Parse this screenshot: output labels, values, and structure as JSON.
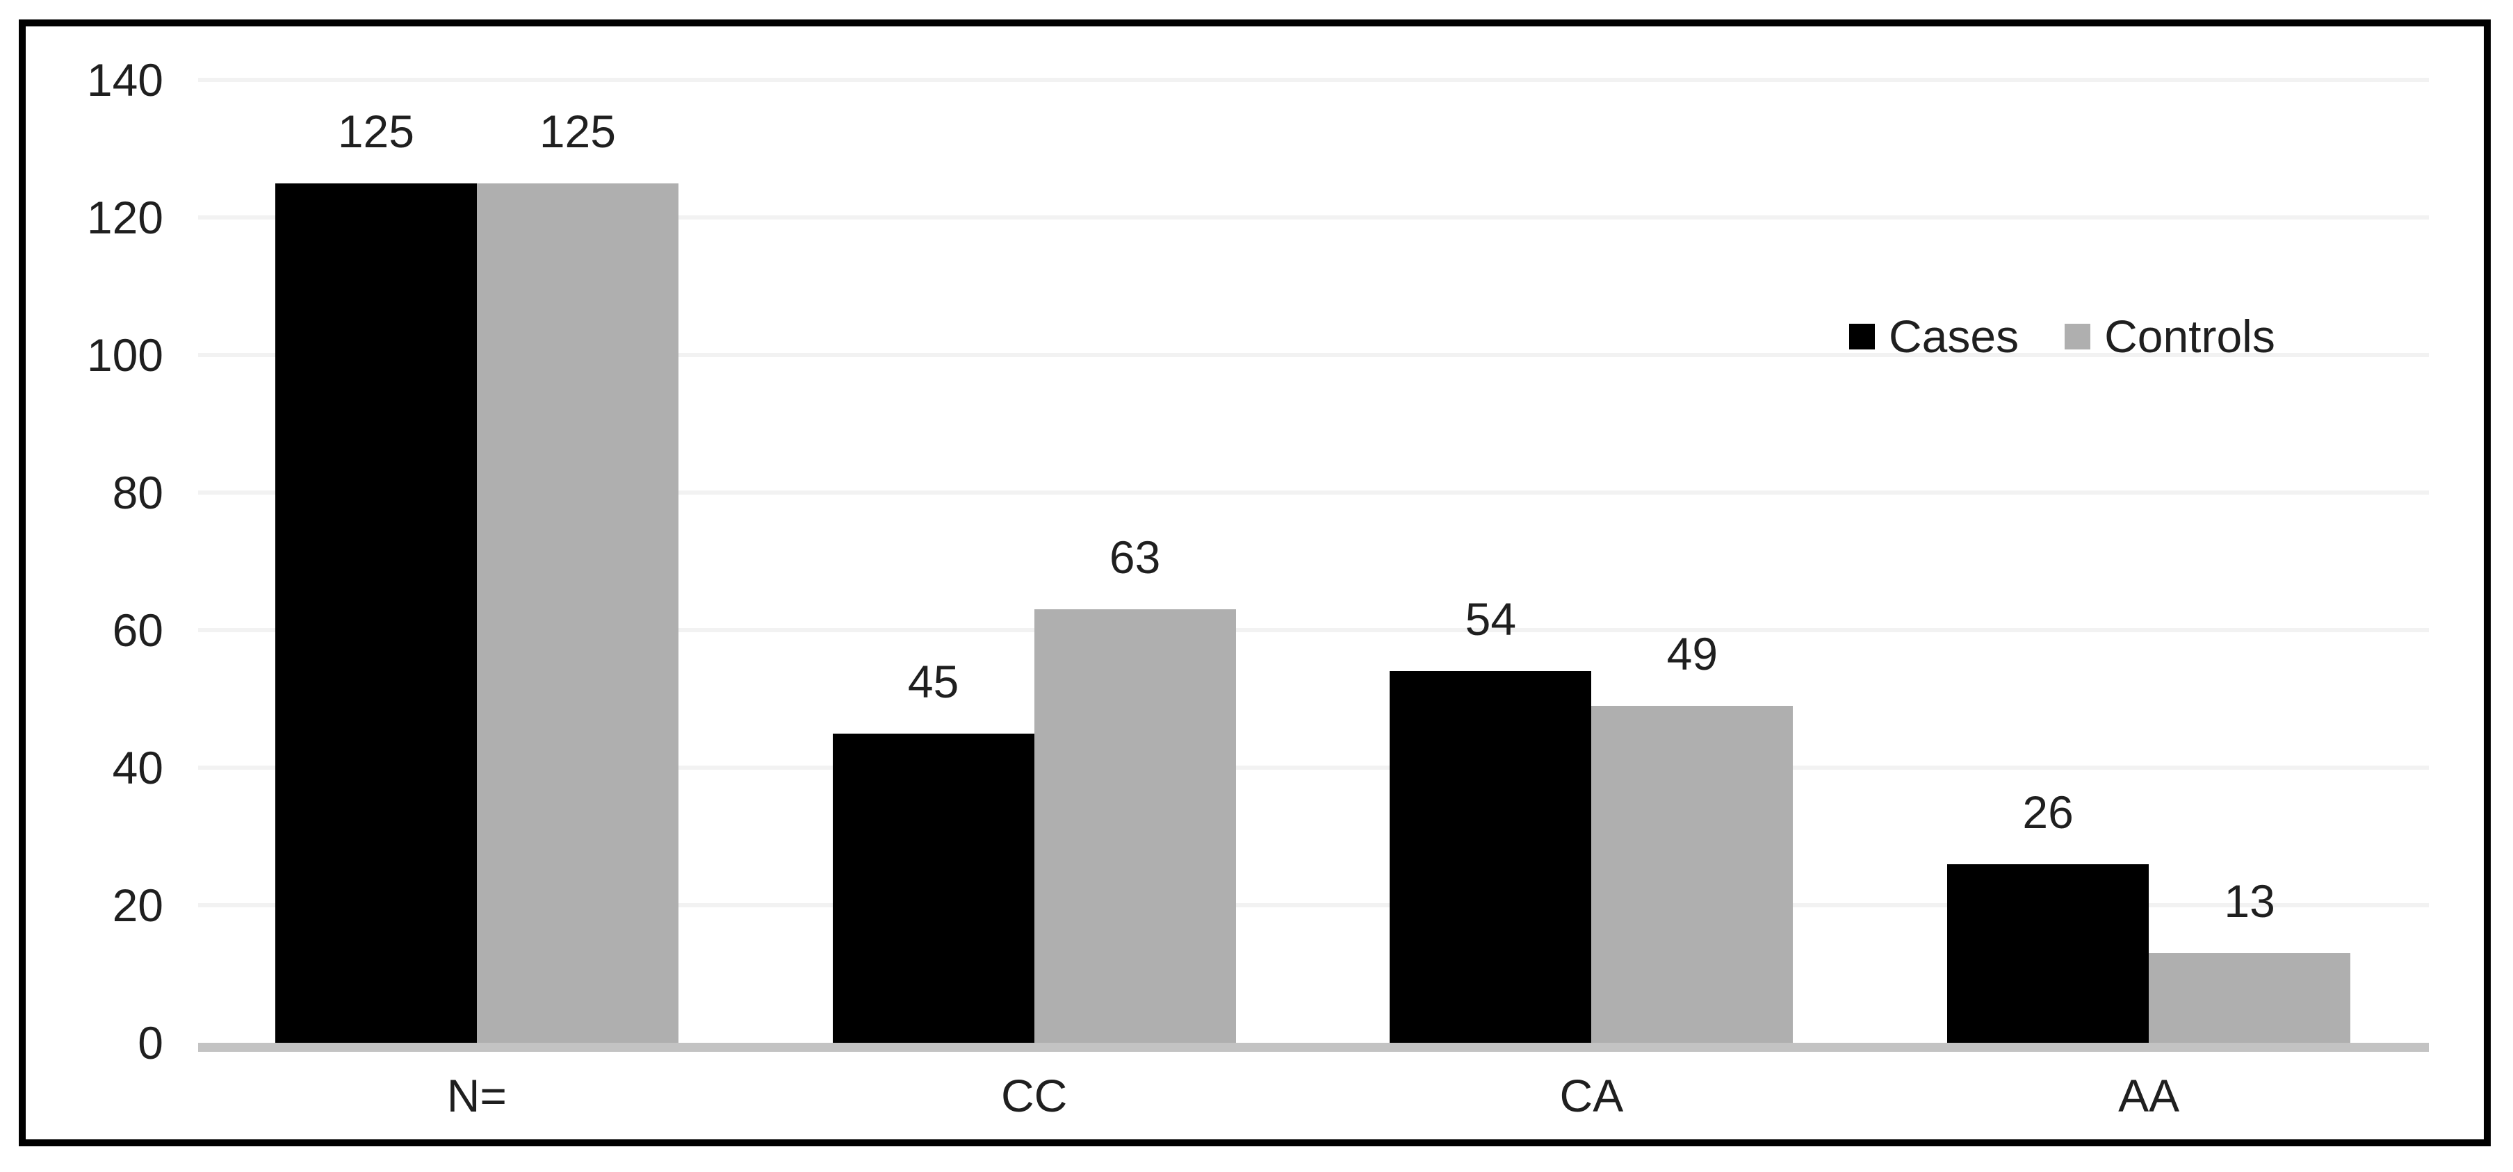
{
  "chart_data": {
    "type": "bar",
    "title": "",
    "xlabel": "",
    "ylabel": "",
    "categories": [
      "N=",
      "CC",
      "CA",
      "AA"
    ],
    "series": [
      {
        "name": "Cases",
        "color": "#000000",
        "values": [
          125,
          45,
          54,
          26
        ]
      },
      {
        "name": "Controls",
        "color": "#AFAFAF",
        "values": [
          125,
          63,
          49,
          13
        ]
      }
    ],
    "ylim": [
      0,
      140
    ],
    "yticks": [
      0,
      20,
      40,
      60,
      80,
      100,
      120,
      140
    ],
    "grid": "horizontal",
    "data_labels": true,
    "legend_position": "inside-upper-right"
  },
  "colors": {
    "background": "#ffffff",
    "frame_border": "#000000",
    "gridline": "#f2f2f2",
    "baseline": "#c3c3c3",
    "text": "#1f1f1f"
  }
}
